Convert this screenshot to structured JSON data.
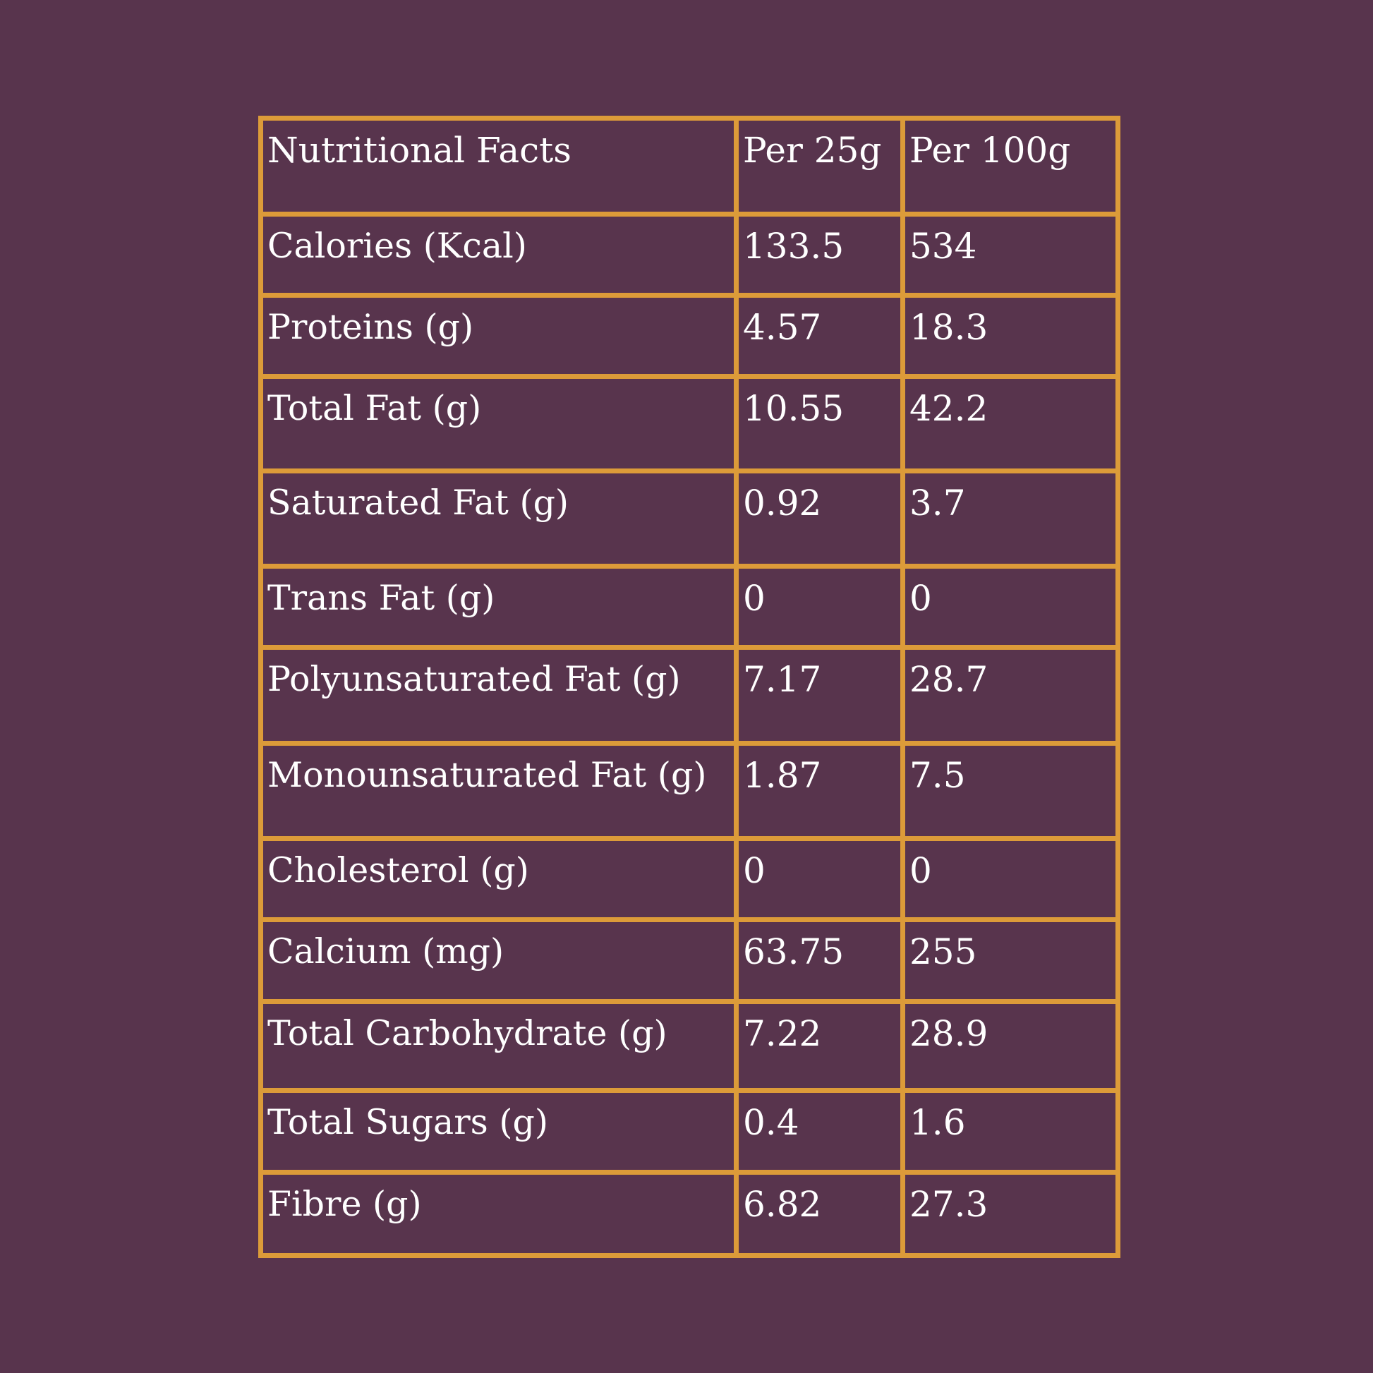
{
  "table": {
    "headers": [
      "Nutritional Facts",
      "Per 25g",
      "Per 100g"
    ],
    "rows": [
      [
        "Calories (Kcal)",
        "133.5",
        "534"
      ],
      [
        "Proteins (g)",
        "4.57",
        "18.3"
      ],
      [
        "Total Fat (g)",
        "10.55",
        "42.2"
      ],
      [
        "Saturated Fat (g)",
        "0.92",
        "3.7"
      ],
      [
        "Trans Fat (g)",
        "0",
        "0"
      ],
      [
        "Polyunsaturated Fat (g)",
        "7.17",
        "28.7"
      ],
      [
        "Monounsaturated Fat (g)",
        "1.87",
        "7.5"
      ],
      [
        "Cholesterol (g)",
        "0",
        "0"
      ],
      [
        "Calcium (mg)",
        "63.75",
        "255"
      ],
      [
        "Total Carbohydrate (g)",
        "7.22",
        "28.9"
      ],
      [
        "Total Sugars (g)",
        "0.4",
        "1.6"
      ],
      [
        "Fibre (g)",
        "6.82",
        "27.3"
      ]
    ]
  },
  "colors": {
    "background": "#58344d",
    "border": "#dc9b39",
    "text": "#ffffff"
  }
}
